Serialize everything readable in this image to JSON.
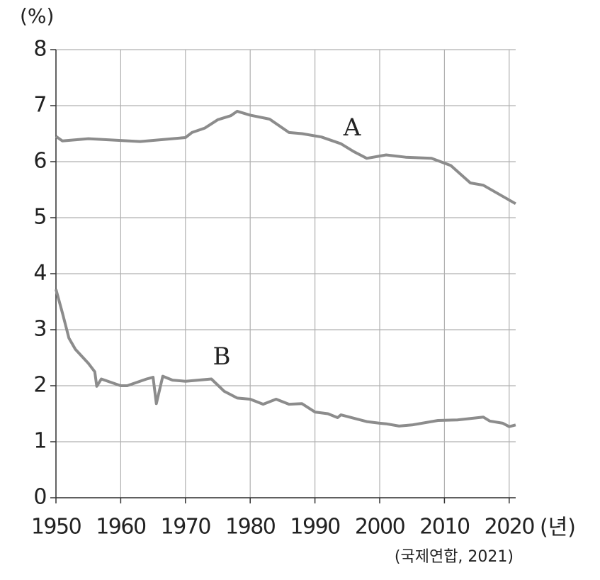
{
  "chart_data": {
    "type": "line",
    "y_unit": "(%)",
    "x_unit": "(년)",
    "source": "(국제연합, 2021)",
    "xlim": [
      1950,
      2021
    ],
    "ylim": [
      0,
      8
    ],
    "xticks": [
      1950,
      1960,
      1970,
      1980,
      1990,
      2000,
      2010,
      2020
    ],
    "yticks": [
      0,
      1,
      2,
      3,
      4,
      5,
      6,
      7,
      8
    ],
    "grid": true,
    "series": [
      {
        "name": "A",
        "color": "#8c8c8c",
        "x": [
          1950,
          1951,
          1955,
          1963,
          1970,
          1971,
          1973,
          1975,
          1977,
          1978,
          1980,
          1983,
          1986,
          1988,
          1991,
          1994,
          1996,
          1998,
          2001,
          2004,
          2008,
          2011,
          2014,
          2016,
          2021
        ],
        "values": [
          6.45,
          6.37,
          6.41,
          6.36,
          6.43,
          6.52,
          6.6,
          6.75,
          6.82,
          6.9,
          6.83,
          6.76,
          6.52,
          6.5,
          6.44,
          6.32,
          6.18,
          6.06,
          6.12,
          6.08,
          6.06,
          5.93,
          5.62,
          5.58,
          5.25
        ]
      },
      {
        "name": "B",
        "color": "#8c8c8c",
        "x": [
          1950,
          1951,
          1952,
          1953,
          1955,
          1956,
          1956.3,
          1957,
          1960,
          1961,
          1964,
          1965,
          1965.5,
          1966.5,
          1968,
          1970,
          1974,
          1976,
          1978,
          1980,
          1982,
          1984,
          1986,
          1988,
          1990,
          1992,
          1993.5,
          1994,
          1996,
          1998,
          2000,
          2001,
          2003,
          2005,
          2009,
          2012,
          2016,
          2017,
          2019,
          2020,
          2021
        ],
        "values": [
          3.72,
          3.3,
          2.85,
          2.65,
          2.4,
          2.25,
          1.99,
          2.12,
          2.0,
          2.0,
          2.12,
          2.15,
          1.68,
          2.17,
          2.1,
          2.08,
          2.12,
          1.9,
          1.78,
          1.76,
          1.67,
          1.76,
          1.67,
          1.68,
          1.53,
          1.5,
          1.43,
          1.48,
          1.42,
          1.36,
          1.33,
          1.32,
          1.28,
          1.3,
          1.38,
          1.39,
          1.44,
          1.37,
          1.33,
          1.27,
          1.3
        ]
      }
    ]
  }
}
